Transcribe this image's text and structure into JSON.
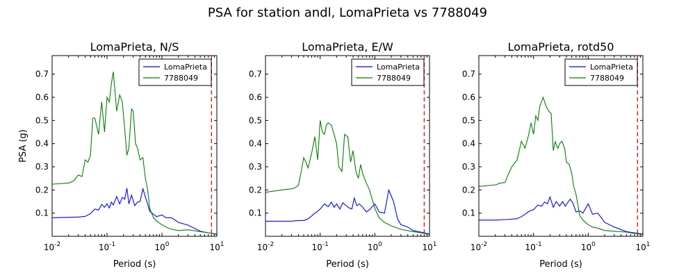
{
  "figure": {
    "title": "PSA for station andl, LomaPrieta vs 7788049"
  },
  "chart_data": [
    {
      "type": "line",
      "title": "LomaPrieta, N/S",
      "xlabel": "Period (s)",
      "ylabel": "PSA (g)",
      "xscale": "log",
      "xlim": [
        0.01,
        10
      ],
      "ylim": [
        0,
        0.78
      ],
      "yticks": [
        "0.1",
        "0.2",
        "0.3",
        "0.4",
        "0.5",
        "0.6",
        "0.7"
      ],
      "xticks": [
        "10^-2",
        "10^-1",
        "10^0",
        "10^1"
      ],
      "legend": "top-right",
      "vline": {
        "x": 8,
        "color": "#ff0000",
        "style": "dashed"
      },
      "series": [
        {
          "name": "LomaPrieta",
          "color": "#0000ff",
          "x": [
            0.01,
            0.02,
            0.03,
            0.04,
            0.05,
            0.06,
            0.07,
            0.08,
            0.09,
            0.1,
            0.11,
            0.12,
            0.13,
            0.15,
            0.17,
            0.19,
            0.21,
            0.23,
            0.25,
            0.28,
            0.32,
            0.36,
            0.4,
            0.45,
            0.5,
            0.6,
            0.7,
            0.8,
            1.0,
            1.2,
            1.5,
            2.0,
            3.0,
            5.0,
            7.0,
            10.0
          ],
          "y": [
            0.08,
            0.082,
            0.083,
            0.086,
            0.098,
            0.118,
            0.113,
            0.138,
            0.125,
            0.14,
            0.122,
            0.148,
            0.135,
            0.172,
            0.14,
            0.168,
            0.16,
            0.208,
            0.14,
            0.178,
            0.132,
            0.148,
            0.15,
            0.205,
            0.17,
            0.108,
            0.095,
            0.085,
            0.092,
            0.08,
            0.08,
            0.06,
            0.048,
            0.022,
            0.015,
            0.01
          ]
        },
        {
          "name": "7788049",
          "color": "#008000",
          "x": [
            0.01,
            0.02,
            0.025,
            0.03,
            0.035,
            0.04,
            0.045,
            0.05,
            0.055,
            0.06,
            0.07,
            0.08,
            0.09,
            0.1,
            0.11,
            0.12,
            0.13,
            0.15,
            0.17,
            0.19,
            0.21,
            0.23,
            0.25,
            0.28,
            0.3,
            0.33,
            0.36,
            0.4,
            0.45,
            0.5,
            0.55,
            0.6,
            0.7,
            0.8,
            1.0,
            1.2,
            1.5,
            2.0,
            3.0,
            5.0,
            7.0,
            10.0
          ],
          "y": [
            0.225,
            0.23,
            0.24,
            0.265,
            0.258,
            0.33,
            0.32,
            0.35,
            0.51,
            0.51,
            0.44,
            0.58,
            0.45,
            0.6,
            0.58,
            0.66,
            0.71,
            0.54,
            0.61,
            0.58,
            0.46,
            0.35,
            0.38,
            0.55,
            0.54,
            0.4,
            0.38,
            0.33,
            0.34,
            0.25,
            0.2,
            0.12,
            0.08,
            0.065,
            0.05,
            0.04,
            0.03,
            0.025,
            0.028,
            0.02,
            0.015,
            0.008
          ]
        }
      ]
    },
    {
      "type": "line",
      "title": "LomaPrieta, E/W",
      "xlabel": "Period (s)",
      "ylabel": "",
      "xscale": "log",
      "xlim": [
        0.01,
        10
      ],
      "ylim": [
        0,
        0.78
      ],
      "yticks": [
        "0.1",
        "0.2",
        "0.3",
        "0.4",
        "0.5",
        "0.6",
        "0.7"
      ],
      "xticks": [
        "10^-2",
        "10^-1",
        "10^0",
        "10^1"
      ],
      "legend": "top-right",
      "vline": {
        "x": 8,
        "color": "#ff0000",
        "style": "dashed"
      },
      "series": [
        {
          "name": "LomaPrieta",
          "color": "#0000ff",
          "x": [
            0.01,
            0.02,
            0.03,
            0.04,
            0.05,
            0.06,
            0.07,
            0.08,
            0.09,
            0.1,
            0.12,
            0.14,
            0.16,
            0.18,
            0.2,
            0.23,
            0.26,
            0.3,
            0.34,
            0.38,
            0.42,
            0.47,
            0.52,
            0.6,
            0.7,
            0.8,
            1.0,
            1.2,
            1.5,
            1.8,
            2.2,
            2.6,
            3.0,
            4.0,
            5.0,
            7.0,
            10.0
          ],
          "y": [
            0.065,
            0.065,
            0.065,
            0.068,
            0.068,
            0.075,
            0.088,
            0.1,
            0.108,
            0.118,
            0.14,
            0.128,
            0.148,
            0.125,
            0.14,
            0.118,
            0.145,
            0.132,
            0.122,
            0.118,
            0.165,
            0.132,
            0.14,
            0.125,
            0.105,
            0.115,
            0.14,
            0.105,
            0.1,
            0.2,
            0.15,
            0.075,
            0.05,
            0.04,
            0.025,
            0.018,
            0.01
          ]
        },
        {
          "name": "7788049",
          "color": "#008000",
          "x": [
            0.01,
            0.02,
            0.03,
            0.035,
            0.04,
            0.045,
            0.05,
            0.055,
            0.06,
            0.07,
            0.08,
            0.09,
            0.1,
            0.11,
            0.12,
            0.13,
            0.14,
            0.16,
            0.18,
            0.2,
            0.22,
            0.25,
            0.28,
            0.32,
            0.36,
            0.4,
            0.45,
            0.5,
            0.55,
            0.6,
            0.7,
            0.8,
            1.0,
            1.2,
            1.5,
            2.0,
            3.0,
            5.0,
            7.0,
            10.0
          ],
          "y": [
            0.19,
            0.2,
            0.205,
            0.21,
            0.22,
            0.28,
            0.34,
            0.32,
            0.295,
            0.36,
            0.43,
            0.33,
            0.5,
            0.45,
            0.44,
            0.48,
            0.49,
            0.48,
            0.44,
            0.4,
            0.3,
            0.28,
            0.44,
            0.43,
            0.32,
            0.37,
            0.28,
            0.25,
            0.31,
            0.27,
            0.23,
            0.2,
            0.12,
            0.08,
            0.06,
            0.045,
            0.03,
            0.02,
            0.015,
            0.008
          ]
        }
      ]
    },
    {
      "type": "line",
      "title": "LomaPrieta, rotd50",
      "xlabel": "Period (s)",
      "ylabel": "",
      "xscale": "log",
      "xlim": [
        0.01,
        10
      ],
      "ylim": [
        0,
        0.78
      ],
      "yticks": [
        "0.1",
        "0.2",
        "0.3",
        "0.4",
        "0.5",
        "0.6",
        "0.7"
      ],
      "xticks": [
        "10^-2",
        "10^-1",
        "10^0",
        "10^1"
      ],
      "legend": "top-right",
      "vline": {
        "x": 8,
        "color": "#ff0000",
        "style": "dashed"
      },
      "series": [
        {
          "name": "LomaPrieta",
          "color": "#0000ff",
          "x": [
            0.01,
            0.02,
            0.03,
            0.04,
            0.05,
            0.06,
            0.07,
            0.08,
            0.09,
            0.1,
            0.12,
            0.14,
            0.16,
            0.18,
            0.2,
            0.23,
            0.26,
            0.3,
            0.34,
            0.38,
            0.42,
            0.47,
            0.52,
            0.6,
            0.7,
            0.8,
            1.0,
            1.2,
            1.5,
            2.0,
            3.0,
            5.0,
            7.0,
            10.0
          ],
          "y": [
            0.07,
            0.07,
            0.072,
            0.074,
            0.076,
            0.085,
            0.095,
            0.105,
            0.112,
            0.115,
            0.135,
            0.13,
            0.148,
            0.14,
            0.17,
            0.125,
            0.15,
            0.13,
            0.15,
            0.13,
            0.145,
            0.16,
            0.145,
            0.105,
            0.11,
            0.1,
            0.14,
            0.095,
            0.1,
            0.06,
            0.04,
            0.02,
            0.015,
            0.01
          ]
        },
        {
          "name": "7788049",
          "color": "#008000",
          "x": [
            0.01,
            0.02,
            0.025,
            0.03,
            0.035,
            0.04,
            0.05,
            0.06,
            0.07,
            0.08,
            0.09,
            0.1,
            0.11,
            0.12,
            0.13,
            0.15,
            0.17,
            0.19,
            0.21,
            0.23,
            0.25,
            0.26,
            0.28,
            0.3,
            0.33,
            0.37,
            0.4,
            0.45,
            0.5,
            0.55,
            0.6,
            0.7,
            0.8,
            1.0,
            1.2,
            1.5,
            2.0,
            3.0,
            5.0,
            7.0,
            10.0
          ],
          "y": [
            0.215,
            0.222,
            0.23,
            0.232,
            0.27,
            0.3,
            0.33,
            0.41,
            0.38,
            0.43,
            0.49,
            0.44,
            0.52,
            0.5,
            0.56,
            0.6,
            0.56,
            0.54,
            0.53,
            0.37,
            0.41,
            0.395,
            0.38,
            0.4,
            0.41,
            0.38,
            0.32,
            0.31,
            0.27,
            0.21,
            0.18,
            0.09,
            0.07,
            0.05,
            0.04,
            0.035,
            0.025,
            0.022,
            0.018,
            0.012,
            0.008
          ]
        }
      ]
    }
  ]
}
